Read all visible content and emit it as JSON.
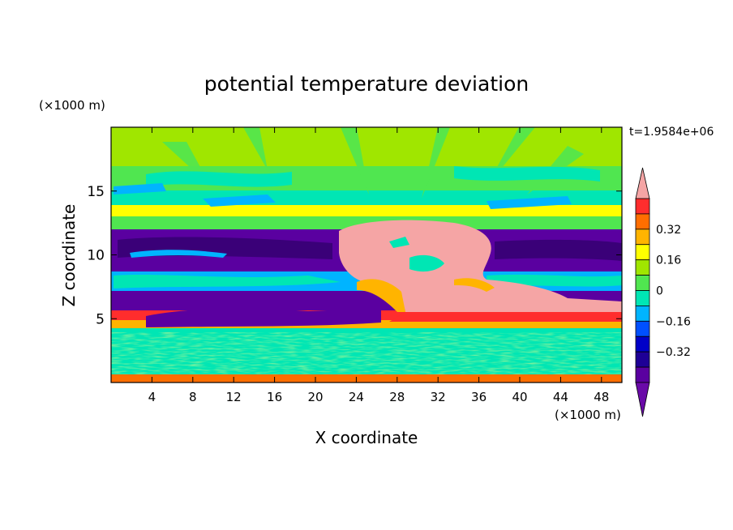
{
  "chart_data": {
    "type": "heatmap",
    "title": "potential temperature deviation",
    "time_label": "t=1.9584e+06",
    "xlabel": "X coordinate",
    "ylabel": "Z coordinate",
    "x_unit": "(×1000 m)",
    "y_unit": "(×1000 m)",
    "xlim": [
      0,
      50
    ],
    "ylim": [
      0,
      20
    ],
    "x_ticks": [
      4,
      8,
      12,
      16,
      20,
      24,
      28,
      32,
      36,
      40,
      44,
      48
    ],
    "y_ticks": [
      5,
      10,
      15
    ],
    "colorbar": {
      "range": [
        -0.48,
        0.48
      ],
      "levels": [
        -0.48,
        -0.4,
        -0.32,
        -0.24,
        -0.16,
        -0.08,
        0,
        0.08,
        0.16,
        0.24,
        0.32,
        0.4,
        0.48
      ],
      "tick_labels": [
        "0.32",
        "0.16",
        "0",
        "−0.16",
        "−0.32"
      ],
      "tick_values": [
        0.32,
        0.16,
        0,
        -0.16,
        -0.32
      ],
      "colors": [
        "#5a00a0",
        "#1e0096",
        "#0000c8",
        "#0050ff",
        "#00b4ff",
        "#00e6b4",
        "#50e650",
        "#a0e600",
        "#ffff00",
        "#ffb400",
        "#ff6e00",
        "#ff2d2d"
      ],
      "over_color": "#f5a5a5",
      "under_color": "#6a0aa8"
    },
    "field_description": "Near-surface layer (0–4 km) noisy green/cyan; purple cold anomaly bands around z≈6–7 km and z≈9–12 km on both flanks; central warm pink plume spanning x≈23–37 km, z≈6–12 km; green/yellow with cyan streaks above 12 km."
  }
}
